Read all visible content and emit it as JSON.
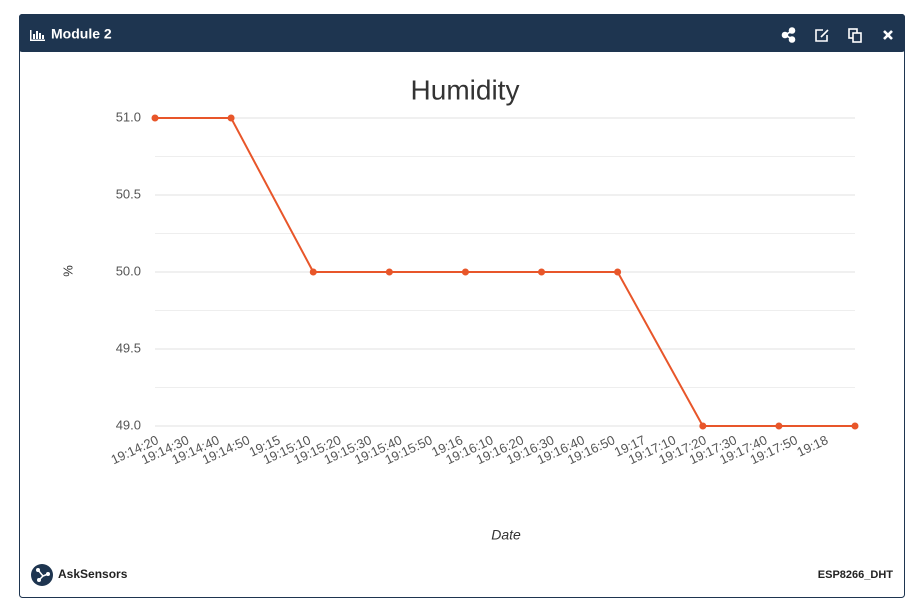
{
  "header": {
    "title": "Module 2"
  },
  "chart_data": {
    "type": "line",
    "title": "Humidity",
    "y_label": "%",
    "x_label": "Date",
    "x": [
      "19:14:20",
      "19:14:45",
      "19:15:12",
      "19:15:37",
      "19:16:02",
      "19:16:27",
      "19:16:52",
      "19:17:20",
      "19:17:45",
      "19:18:10"
    ],
    "series": [
      {
        "name": "Humidity",
        "color": "#e8562a",
        "values": [
          51,
          51,
          50,
          50,
          50,
          50,
          50,
          49,
          49,
          49
        ]
      }
    ],
    "xlim": [
      "19:14:20",
      "19:18:10"
    ],
    "xticks": [
      "19:14:20",
      "19:14:30",
      "19:14:40",
      "19:14:50",
      "19:15",
      "19:15:10",
      "19:15:20",
      "19:15:30",
      "19:15:40",
      "19:15:50",
      "19:16",
      "19:16:10",
      "19:16:20",
      "19:16:30",
      "19:16:40",
      "19:16:50",
      "19:17",
      "19:17:10",
      "19:17:20",
      "19:17:30",
      "19:17:40",
      "19:17:50",
      "19:18"
    ],
    "ylim": [
      49,
      51
    ],
    "yticks": [
      {
        "value": 49,
        "label": "49.0"
      },
      {
        "value": 49.5,
        "label": "49.5"
      },
      {
        "value": 50,
        "label": "50.0"
      },
      {
        "value": 50.5,
        "label": "50.5"
      },
      {
        "value": 51,
        "label": "51.0"
      }
    ],
    "minor_yticks": [
      49.25,
      49.75,
      50.25,
      50.75
    ],
    "grid": true
  },
  "footer": {
    "brand": "AskSensors",
    "device": "ESP8266_DHT"
  }
}
